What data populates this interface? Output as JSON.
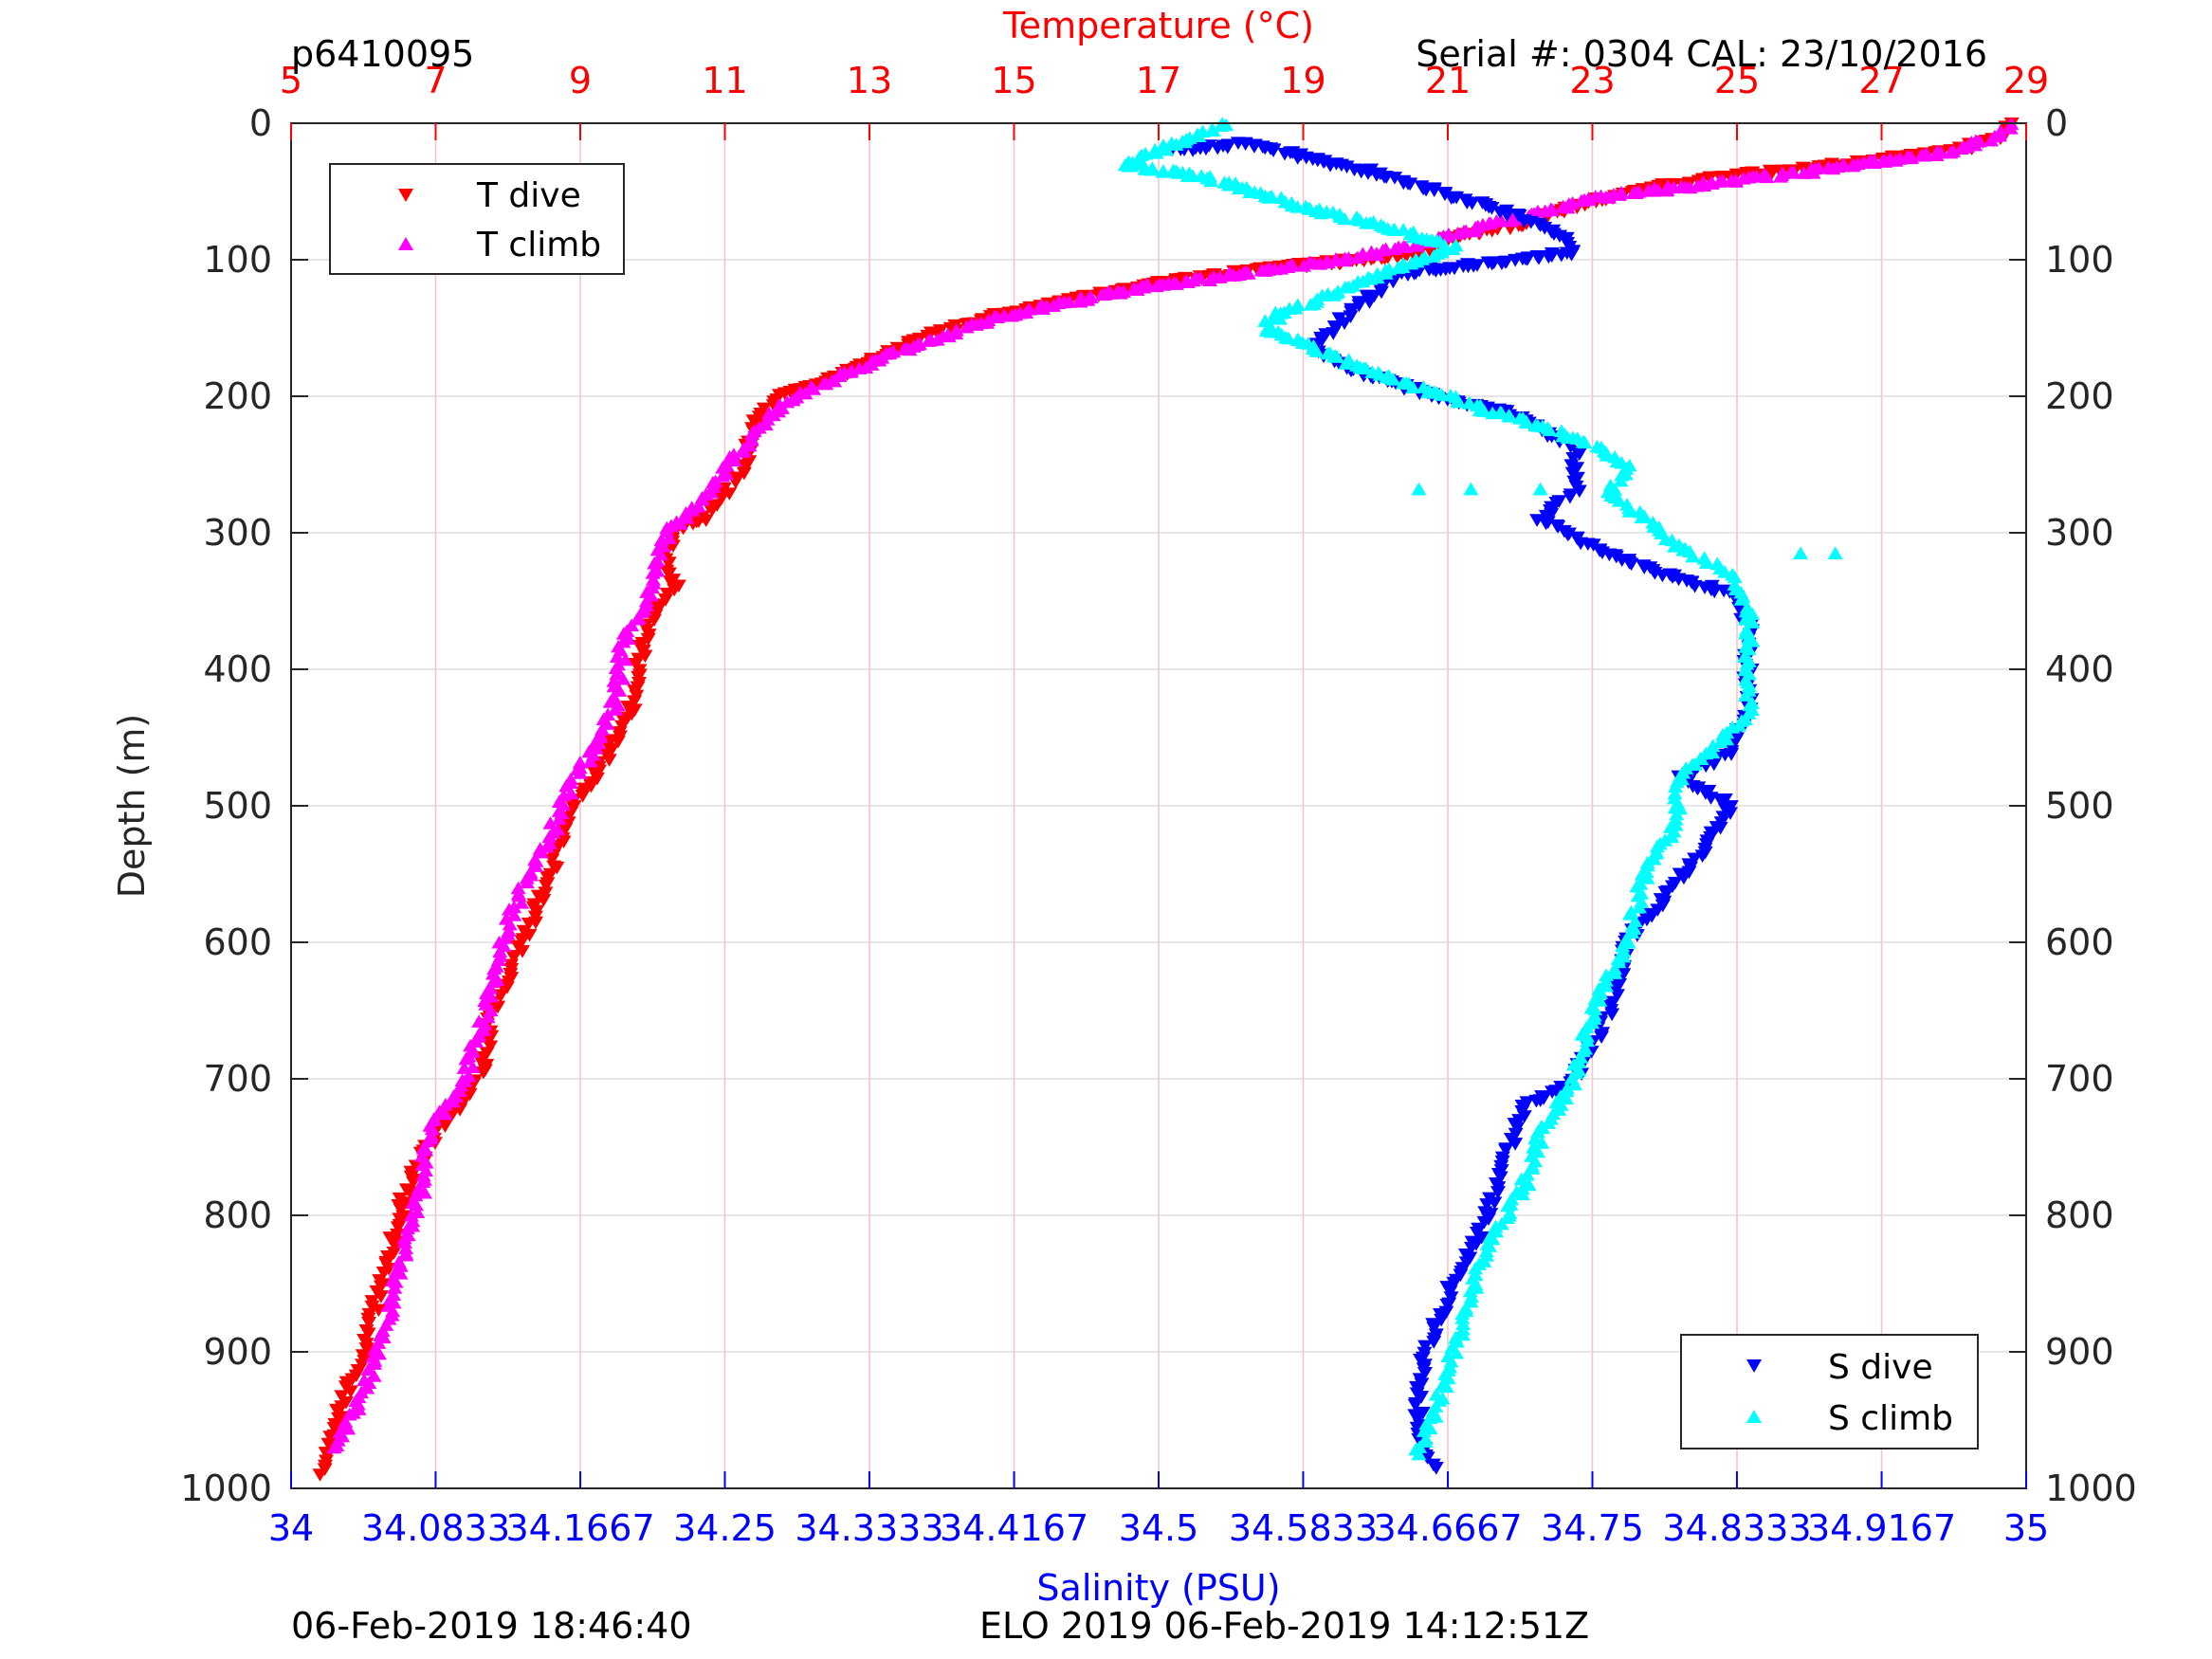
{
  "header": {
    "left": "p6410095",
    "right": "Serial #: 0304  CAL: 23/10/2016"
  },
  "footer": {
    "left": "06-Feb-2019 18:46:40",
    "center": "ELO 2019 06-Feb-2019 14:12:51Z"
  },
  "colors": {
    "t_dive": "#ff0000",
    "t_climb": "#ff00ff",
    "s_dive": "#0000ff",
    "s_climb": "#00ffff",
    "temperature_axis": "#ff0000",
    "salinity_axis": "#0000ff"
  },
  "chart_data": {
    "type": "scatter",
    "grid": true,
    "y_axis": {
      "label": "Depth (m)",
      "range": [
        0,
        1000
      ],
      "reversed": true,
      "ticks": [
        "0",
        "100",
        "200",
        "300",
        "400",
        "500",
        "600",
        "700",
        "800",
        "900",
        "1000"
      ],
      "tick_values": [
        0,
        100,
        200,
        300,
        400,
        500,
        600,
        700,
        800,
        900,
        1000
      ]
    },
    "top_axis": {
      "label": "Temperature (°C)",
      "range": [
        5,
        29
      ],
      "ticks": [
        "5",
        "7",
        "9",
        "11",
        "13",
        "15",
        "17",
        "19",
        "21",
        "23",
        "25",
        "27",
        "29"
      ],
      "tick_values": [
        5,
        7,
        9,
        11,
        13,
        15,
        17,
        19,
        21,
        23,
        25,
        27,
        29
      ]
    },
    "bottom_axis": {
      "label": "Salinity (PSU)",
      "range": [
        34,
        35
      ],
      "ticks": [
        "34",
        "34.0833",
        "34.1667",
        "34.25",
        "34.3333",
        "34.4167",
        "34.5",
        "34.5833",
        "34.6667",
        "34.75",
        "34.8333",
        "34.9167",
        "35"
      ],
      "tick_values": [
        34,
        34.0833,
        34.1667,
        34.25,
        34.3333,
        34.4167,
        34.5,
        34.5833,
        34.6667,
        34.75,
        34.8333,
        34.9167,
        35
      ]
    },
    "legends": [
      {
        "position": "top-left",
        "entries": [
          "T dive",
          "T climb"
        ]
      },
      {
        "position": "bottom-right",
        "entries": [
          "S dive",
          "S climb"
        ]
      }
    ],
    "series": [
      {
        "name": "T dive",
        "axis": "temperature",
        "marker": "triangle-down",
        "points": [
          [
            28.8,
            0
          ],
          [
            28.7,
            10
          ],
          [
            28.0,
            20
          ],
          [
            26.5,
            30
          ],
          [
            24.8,
            40
          ],
          [
            23.5,
            50
          ],
          [
            22.8,
            60
          ],
          [
            22.0,
            75
          ],
          [
            21.0,
            85
          ],
          [
            20.8,
            95
          ],
          [
            19.8,
            100
          ],
          [
            18.8,
            105
          ],
          [
            17.3,
            115
          ],
          [
            16.2,
            125
          ],
          [
            14.8,
            140
          ],
          [
            13.6,
            160
          ],
          [
            13.0,
            175
          ],
          [
            12.3,
            190
          ],
          [
            11.8,
            200
          ],
          [
            11.4,
            220
          ],
          [
            11.3,
            250
          ],
          [
            11.0,
            270
          ],
          [
            10.7,
            290
          ],
          [
            10.3,
            300
          ],
          [
            10.2,
            320
          ],
          [
            10.3,
            340
          ],
          [
            10.0,
            360
          ],
          [
            9.8,
            400
          ],
          [
            9.7,
            430
          ],
          [
            9.4,
            460
          ],
          [
            9.2,
            480
          ],
          [
            8.8,
            510
          ],
          [
            8.6,
            550
          ],
          [
            8.2,
            600
          ],
          [
            7.8,
            650
          ],
          [
            7.6,
            700
          ],
          [
            7.0,
            740
          ],
          [
            6.6,
            780
          ],
          [
            6.4,
            820
          ],
          [
            6.2,
            860
          ],
          [
            6.0,
            900
          ],
          [
            5.7,
            940
          ],
          [
            5.5,
            970
          ],
          [
            5.4,
            990
          ]
        ]
      },
      {
        "name": "T climb",
        "axis": "temperature",
        "marker": "triangle-up",
        "points": [
          [
            28.8,
            0
          ],
          [
            28.6,
            10
          ],
          [
            27.8,
            22
          ],
          [
            26.0,
            35
          ],
          [
            24.5,
            45
          ],
          [
            23.0,
            55
          ],
          [
            22.3,
            65
          ],
          [
            21.5,
            75
          ],
          [
            20.5,
            90
          ],
          [
            19.5,
            100
          ],
          [
            18.5,
            108
          ],
          [
            17.0,
            118
          ],
          [
            15.8,
            130
          ],
          [
            14.6,
            145
          ],
          [
            13.5,
            165
          ],
          [
            12.8,
            180
          ],
          [
            12.2,
            195
          ],
          [
            11.7,
            210
          ],
          [
            11.2,
            240
          ],
          [
            10.8,
            270
          ],
          [
            10.2,
            300
          ],
          [
            10.0,
            340
          ],
          [
            9.6,
            380
          ],
          [
            9.5,
            420
          ],
          [
            9.3,
            450
          ],
          [
            8.9,
            480
          ],
          [
            8.6,
            520
          ],
          [
            8.2,
            560
          ],
          [
            7.9,
            600
          ],
          [
            7.7,
            650
          ],
          [
            7.4,
            700
          ],
          [
            6.9,
            740
          ],
          [
            6.8,
            780
          ],
          [
            6.6,
            820
          ],
          [
            6.4,
            860
          ],
          [
            6.2,
            900
          ],
          [
            6.0,
            930
          ],
          [
            5.8,
            950
          ],
          [
            5.6,
            970
          ]
        ]
      },
      {
        "name": "S dive",
        "axis": "salinity",
        "marker": "triangle-down",
        "points": [
          [
            34.51,
            20
          ],
          [
            34.55,
            15
          ],
          [
            34.62,
            35
          ],
          [
            34.66,
            50
          ],
          [
            34.7,
            65
          ],
          [
            34.73,
            80
          ],
          [
            34.74,
            95
          ],
          [
            34.64,
            110
          ],
          [
            34.62,
            130
          ],
          [
            34.6,
            150
          ],
          [
            34.59,
            165
          ],
          [
            34.61,
            180
          ],
          [
            34.66,
            200
          ],
          [
            34.71,
            215
          ],
          [
            34.74,
            240
          ],
          [
            34.74,
            270
          ],
          [
            34.72,
            290
          ],
          [
            34.75,
            310
          ],
          [
            34.79,
            330
          ],
          [
            34.83,
            345
          ],
          [
            34.84,
            370
          ],
          [
            34.84,
            400
          ],
          [
            34.84,
            430
          ],
          [
            34.83,
            460
          ],
          [
            34.8,
            480
          ],
          [
            34.83,
            500
          ],
          [
            34.81,
            540
          ],
          [
            34.79,
            570
          ],
          [
            34.77,
            600
          ],
          [
            34.76,
            650
          ],
          [
            34.74,
            700
          ],
          [
            34.71,
            720
          ],
          [
            34.7,
            760
          ],
          [
            34.69,
            800
          ],
          [
            34.67,
            850
          ],
          [
            34.66,
            880
          ],
          [
            34.65,
            920
          ],
          [
            34.65,
            960
          ],
          [
            34.66,
            985
          ]
        ]
      },
      {
        "name": "S climb",
        "axis": "salinity",
        "marker": "triangle-up",
        "points": [
          [
            34.54,
            0
          ],
          [
            34.48,
            30
          ],
          [
            34.53,
            40
          ],
          [
            34.58,
            60
          ],
          [
            34.63,
            75
          ],
          [
            34.67,
            90
          ],
          [
            34.61,
            120
          ],
          [
            34.57,
            140
          ],
          [
            34.56,
            150
          ],
          [
            34.6,
            170
          ],
          [
            34.64,
            190
          ],
          [
            34.69,
            210
          ],
          [
            34.74,
            230
          ],
          [
            34.77,
            250
          ],
          [
            34.76,
            270
          ],
          [
            34.78,
            290
          ],
          [
            34.8,
            310
          ],
          [
            34.83,
            330
          ],
          [
            34.84,
            360
          ],
          [
            34.84,
            400
          ],
          [
            34.84,
            430
          ],
          [
            34.82,
            460
          ],
          [
            34.8,
            480
          ],
          [
            34.8,
            510
          ],
          [
            34.78,
            550
          ],
          [
            34.77,
            600
          ],
          [
            34.75,
            650
          ],
          [
            34.74,
            700
          ],
          [
            34.72,
            740
          ],
          [
            34.71,
            780
          ],
          [
            34.69,
            820
          ],
          [
            34.68,
            860
          ],
          [
            34.67,
            900
          ],
          [
            34.66,
            940
          ],
          [
            34.65,
            975
          ]
        ]
      },
      {
        "name": "S climb outliers",
        "axis": "salinity",
        "marker": "triangle-up",
        "points": [
          [
            34.65,
            268
          ],
          [
            34.68,
            268
          ],
          [
            34.72,
            268
          ],
          [
            34.87,
            315
          ],
          [
            34.89,
            315
          ]
        ]
      }
    ]
  }
}
